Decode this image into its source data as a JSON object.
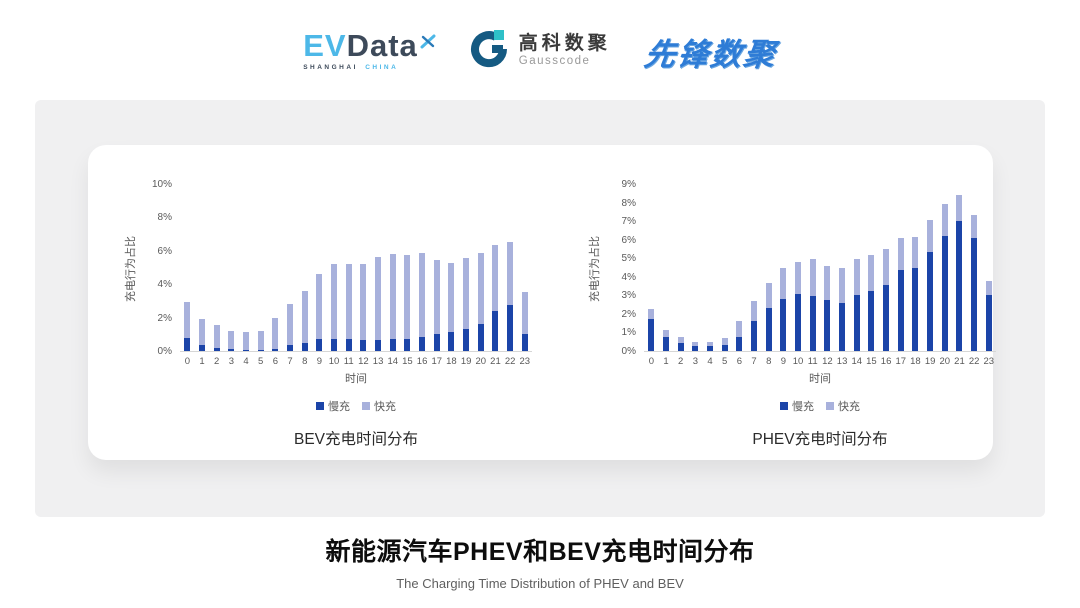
{
  "header": {
    "evdata": {
      "ev": "EV",
      "data": "Data",
      "sub_left": "SHANGHAI",
      "sub_right": "CHINA"
    },
    "gausscode": {
      "cn": "高科数聚",
      "en": "Gausscode"
    },
    "xianfeng": {
      "text": "先锋数聚"
    }
  },
  "footer": {
    "title": "新能源汽车PHEV和BEV充电时间分布",
    "subtitle": "The Charging Time Distribution of PHEV and BEV"
  },
  "colors": {
    "slow": "#1b44a8",
    "fast": "#a8b1dc",
    "axis_text": "#595959"
  },
  "chart_data": [
    {
      "type": "bar",
      "stacked": true,
      "title": "BEV充电时间分布",
      "xlabel": "时间",
      "ylabel": "充电行为占比",
      "ylim": [
        0,
        10
      ],
      "ytick_step": 2,
      "grid": false,
      "legend_position": "bottom",
      "categories": [
        "0",
        "1",
        "2",
        "3",
        "4",
        "5",
        "6",
        "7",
        "8",
        "9",
        "10",
        "11",
        "12",
        "13",
        "14",
        "15",
        "16",
        "17",
        "18",
        "19",
        "20",
        "21",
        "22",
        "23"
      ],
      "series": [
        {
          "name": "慢充",
          "color": "#1b44a8",
          "values": [
            0.78,
            0.34,
            0.19,
            0.1,
            0.08,
            0.08,
            0.15,
            0.36,
            0.5,
            0.69,
            0.69,
            0.74,
            0.63,
            0.67,
            0.71,
            0.71,
            0.86,
            1.01,
            1.11,
            1.32,
            1.62,
            2.42,
            2.73,
            0.99
          ]
        },
        {
          "name": "快充",
          "color": "#a8b1dc",
          "values": [
            2.16,
            1.55,
            1.34,
            1.1,
            1.03,
            1.12,
            1.85,
            2.43,
            3.07,
            3.93,
            4.5,
            4.49,
            4.6,
            4.98,
            5.11,
            5.07,
            4.98,
            4.47,
            4.18,
            4.25,
            4.26,
            3.92,
            3.78,
            2.52
          ]
        }
      ]
    },
    {
      "type": "bar",
      "stacked": true,
      "title": "PHEV充电时间分布",
      "xlabel": "时间",
      "ylabel": "充电行为占比",
      "ylim": [
        0,
        9
      ],
      "ytick_step": 1,
      "grid": false,
      "legend_position": "bottom",
      "categories": [
        "0",
        "1",
        "2",
        "3",
        "4",
        "5",
        "6",
        "7",
        "8",
        "9",
        "10",
        "11",
        "12",
        "13",
        "14",
        "15",
        "16",
        "17",
        "18",
        "19",
        "20",
        "21",
        "22",
        "23"
      ],
      "series": [
        {
          "name": "慢充",
          "color": "#1b44a8",
          "values": [
            1.75,
            0.75,
            0.45,
            0.25,
            0.25,
            0.3,
            0.75,
            1.6,
            2.3,
            2.8,
            3.05,
            2.95,
            2.75,
            2.6,
            3.0,
            3.25,
            3.55,
            4.35,
            4.5,
            5.35,
            6.2,
            7.0,
            6.1,
            3.0
          ]
        },
        {
          "name": "快充",
          "color": "#a8b1dc",
          "values": [
            0.5,
            0.4,
            0.3,
            0.25,
            0.25,
            0.4,
            0.85,
            1.1,
            1.35,
            1.7,
            1.75,
            2.0,
            1.85,
            1.85,
            1.95,
            1.95,
            1.95,
            1.75,
            1.65,
            1.7,
            1.7,
            1.4,
            1.25,
            0.8
          ]
        }
      ]
    }
  ]
}
